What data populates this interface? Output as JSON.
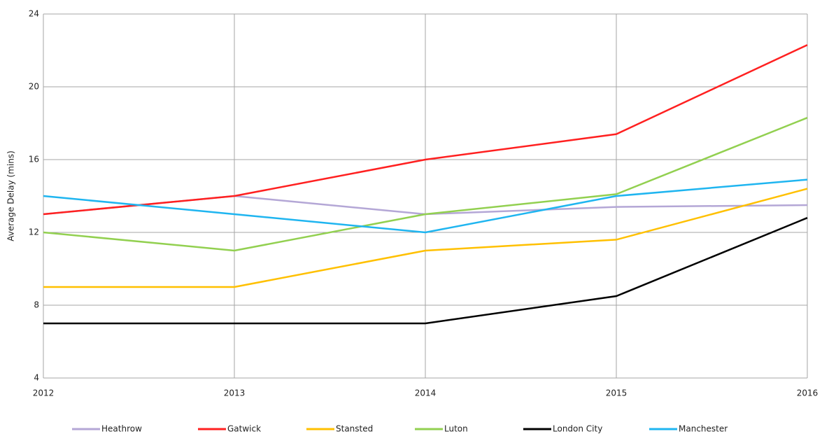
{
  "chart_data": {
    "type": "line",
    "y_label": "Average Delay (mins)",
    "x": [
      2012,
      2013,
      2014,
      2015,
      2016
    ],
    "xlim": [
      2012,
      2016
    ],
    "xticks": [
      2012,
      2013,
      2014,
      2015,
      2016
    ],
    "ylim": [
      4,
      24
    ],
    "yticks": [
      4,
      8,
      12,
      16,
      20,
      24
    ],
    "grid": true,
    "series": [
      {
        "name": "Heathrow",
        "color": "#b4a7d6",
        "values": [
          13,
          14,
          13,
          13.4,
          13.5
        ]
      },
      {
        "name": "Gatwick",
        "color": "#ff2020",
        "values": [
          13,
          14,
          16,
          17.4,
          22.3
        ]
      },
      {
        "name": "Stansted",
        "color": "#ffc000",
        "values": [
          9,
          9,
          11,
          11.6,
          14.4
        ]
      },
      {
        "name": "Luton",
        "color": "#92d050",
        "values": [
          12,
          11,
          13,
          14.1,
          18.3
        ]
      },
      {
        "name": "London City",
        "color": "#000000",
        "values": [
          7,
          7,
          7,
          8.5,
          12.8
        ]
      },
      {
        "name": "Manchester",
        "color": "#1fb5f0",
        "values": [
          14,
          13,
          12,
          14,
          14.9
        ]
      }
    ]
  }
}
